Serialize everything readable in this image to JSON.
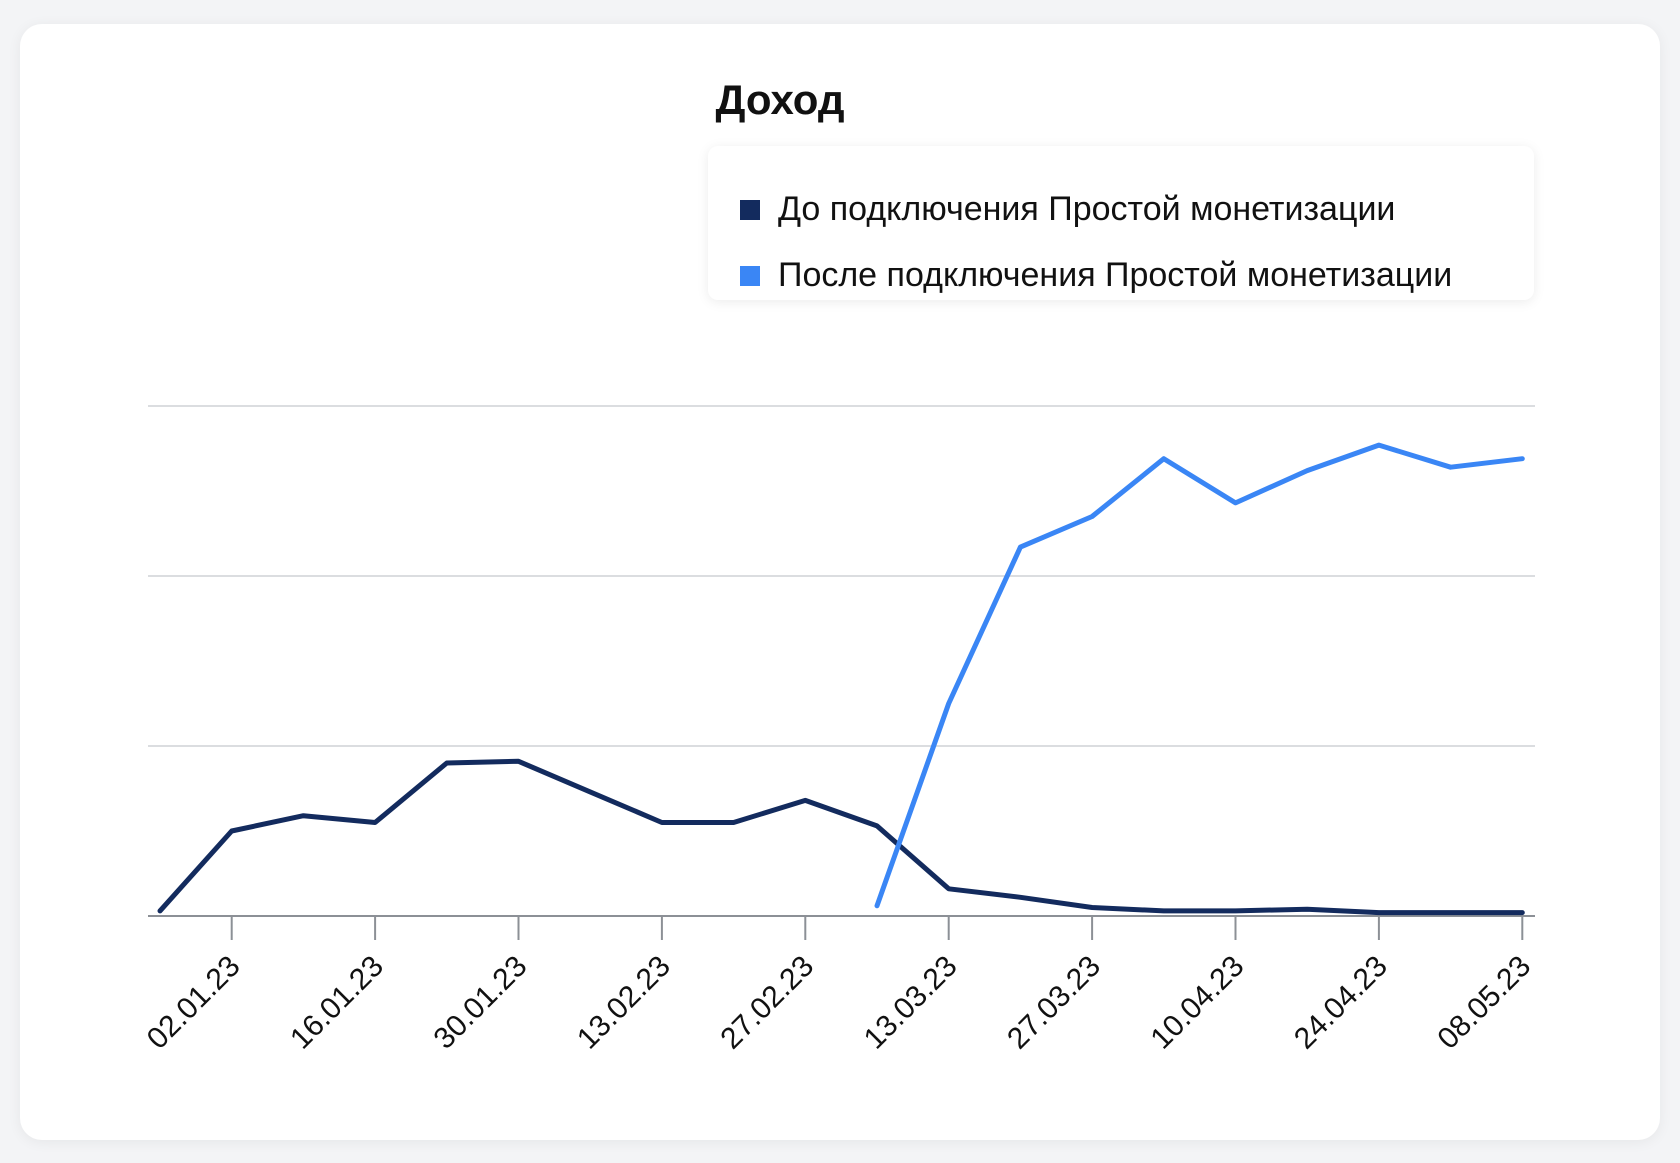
{
  "chart_data": {
    "type": "line",
    "title": "Доход",
    "xlabel": "",
    "ylabel": "",
    "x_tick_labels": [
      "02.01.23",
      "16.01.23",
      "30.01.23",
      "13.02.23",
      "27.02.23",
      "13.03.23",
      "27.03.23",
      "10.04.23",
      "24.04.23",
      "08.05.23"
    ],
    "x_start": "2022-12-26",
    "x_step_days": 7,
    "ylim": [
      0,
      3
    ],
    "grid": true,
    "legend_position": "top-right",
    "series": [
      {
        "name": "До подключения Простой монетизации",
        "color": "#132b5e",
        "x": [
          "26.12.22",
          "02.01.23",
          "09.01.23",
          "16.01.23",
          "23.01.23",
          "30.01.23",
          "06.02.23",
          "13.02.23",
          "20.02.23",
          "27.02.23",
          "06.03.23",
          "13.03.23",
          "20.03.23",
          "27.03.23",
          "03.04.23",
          "10.04.23",
          "17.04.23",
          "24.04.23",
          "01.05.23",
          "08.05.23"
        ],
        "values": [
          0.03,
          0.5,
          0.59,
          0.55,
          0.9,
          0.91,
          0.73,
          0.55,
          0.55,
          0.68,
          0.53,
          0.16,
          0.11,
          0.05,
          0.03,
          0.03,
          0.04,
          0.02,
          0.02,
          0.02
        ]
      },
      {
        "name": "После подключения Простой монетизации",
        "color": "#3a86f5",
        "x": [
          "06.03.23",
          "13.03.23",
          "20.03.23",
          "27.03.23",
          "03.04.23",
          "10.04.23",
          "17.04.23",
          "24.04.23",
          "01.05.23",
          "08.05.23"
        ],
        "values": [
          0.06,
          1.25,
          2.17,
          2.35,
          2.69,
          2.43,
          2.62,
          2.77,
          2.64,
          2.69
        ]
      }
    ]
  }
}
